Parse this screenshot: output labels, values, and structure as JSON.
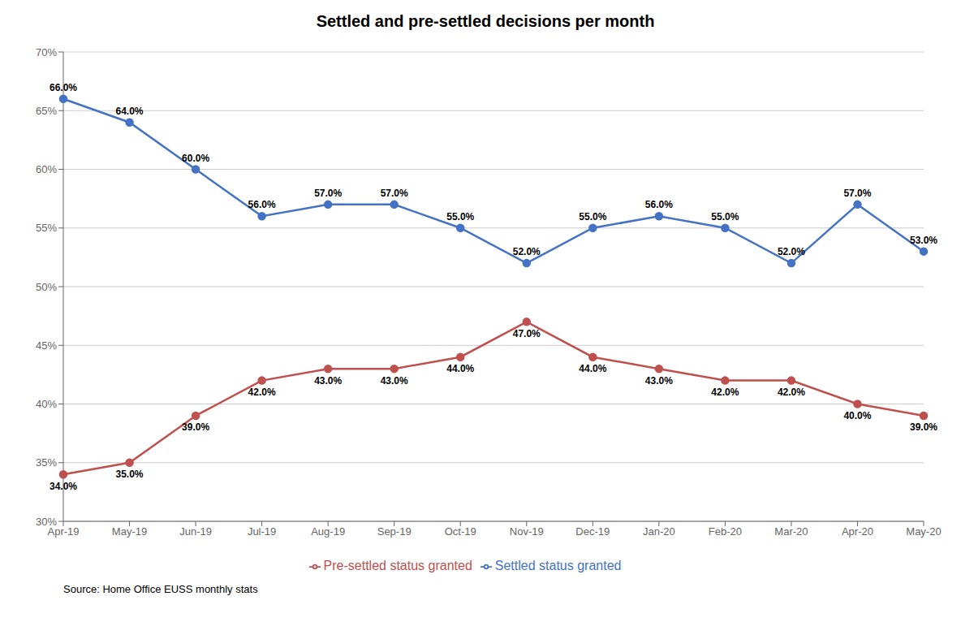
{
  "chart_data": {
    "type": "line",
    "title": "Settled and pre-settled decisions per month",
    "categories": [
      "Apr-19",
      "May-19",
      "Jun-19",
      "Jul-19",
      "Aug-19",
      "Sep-19",
      "Oct-19",
      "Nov-19",
      "Dec-19",
      "Jan-20",
      "Feb-20",
      "Mar-20",
      "Apr-20",
      "May-20"
    ],
    "series": [
      {
        "name": "Settled status granted",
        "color": "#4472C4",
        "values": [
          66.0,
          64.0,
          60.0,
          56.0,
          57.0,
          57.0,
          55.0,
          52.0,
          55.0,
          56.0,
          55.0,
          52.0,
          57.0,
          53.0
        ],
        "value_labels": [
          "66.0%",
          "64.0%",
          "60.0%",
          "56.0%",
          "57.0%",
          "57.0%",
          "55.0%",
          "52.0%",
          "55.0%",
          "56.0%",
          "55.0%",
          "52.0%",
          "57.0%",
          "53.0%"
        ]
      },
      {
        "name": "Pre-settled status granted",
        "color": "#C0504D",
        "values": [
          34.0,
          35.0,
          39.0,
          42.0,
          43.0,
          43.0,
          44.0,
          47.0,
          44.0,
          43.0,
          42.0,
          42.0,
          40.0,
          39.0
        ],
        "value_labels": [
          "34.0%",
          "35.0%",
          "39.0%",
          "42.0%",
          "43.0%",
          "43.0%",
          "44.0%",
          "47.0%",
          "44.0%",
          "43.0%",
          "42.0%",
          "42.0%",
          "40.0%",
          "39.0%"
        ]
      }
    ],
    "ylim": [
      30,
      70
    ],
    "yticks": [
      {
        "value": 30,
        "label": "30%"
      },
      {
        "value": 35,
        "label": "35%"
      },
      {
        "value": 40,
        "label": "40%"
      },
      {
        "value": 45,
        "label": "45%"
      },
      {
        "value": 50,
        "label": "50%"
      },
      {
        "value": 55,
        "label": "55%"
      },
      {
        "value": 60,
        "label": "60%"
      },
      {
        "value": 65,
        "label": "65%"
      },
      {
        "value": 70,
        "label": "70%"
      }
    ],
    "grid": true,
    "legend": "bottom",
    "data_labels": true,
    "marker": "circle",
    "annotations": [
      "Source: Home Office EUSS monthly stats"
    ]
  }
}
